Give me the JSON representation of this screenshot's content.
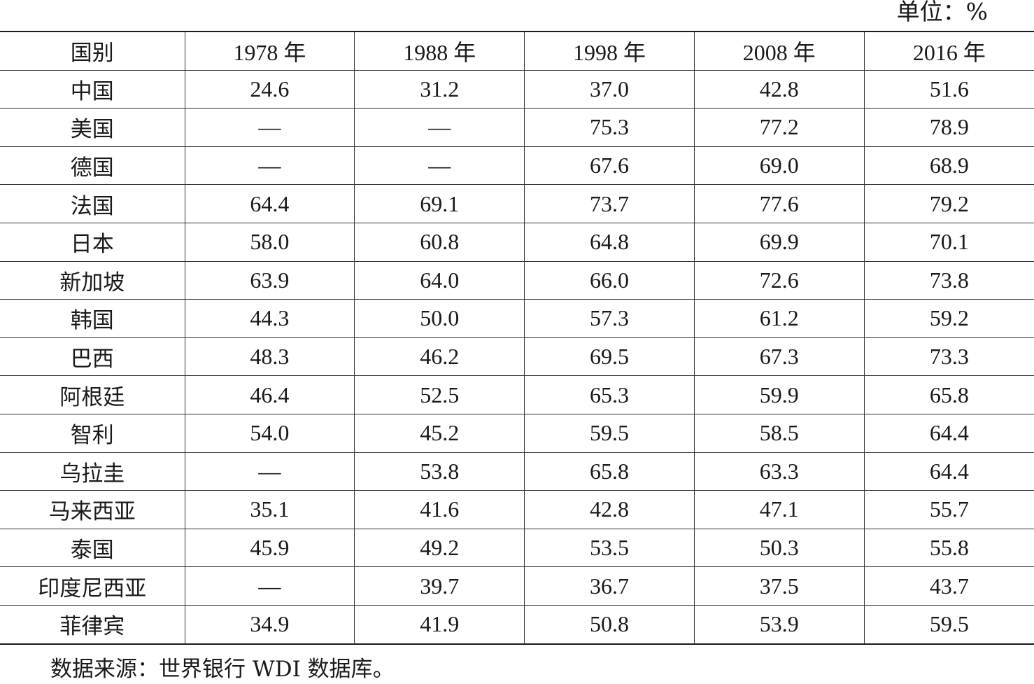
{
  "unit_label": "单位：%",
  "table": {
    "headers": [
      "国别",
      "1978 年",
      "1988 年",
      "1998 年",
      "2008 年",
      "2016 年"
    ],
    "rows": [
      [
        "中国",
        "24.6",
        "31.2",
        "37.0",
        "42.8",
        "51.6"
      ],
      [
        "美国",
        "—",
        "—",
        "75.3",
        "77.2",
        "78.9"
      ],
      [
        "德国",
        "—",
        "—",
        "67.6",
        "69.0",
        "68.9"
      ],
      [
        "法国",
        "64.4",
        "69.1",
        "73.7",
        "77.6",
        "79.2"
      ],
      [
        "日本",
        "58.0",
        "60.8",
        "64.8",
        "69.9",
        "70.1"
      ],
      [
        "新加坡",
        "63.9",
        "64.0",
        "66.0",
        "72.6",
        "73.8"
      ],
      [
        "韩国",
        "44.3",
        "50.0",
        "57.3",
        "61.2",
        "59.2"
      ],
      [
        "巴西",
        "48.3",
        "46.2",
        "69.5",
        "67.3",
        "73.3"
      ],
      [
        "阿根廷",
        "46.4",
        "52.5",
        "65.3",
        "59.9",
        "65.8"
      ],
      [
        "智利",
        "54.0",
        "45.2",
        "59.5",
        "58.5",
        "64.4"
      ],
      [
        "乌拉圭",
        "—",
        "53.8",
        "65.8",
        "63.3",
        "64.4"
      ],
      [
        "马来西亚",
        "35.1",
        "41.6",
        "42.8",
        "47.1",
        "55.7"
      ],
      [
        "泰国",
        "45.9",
        "49.2",
        "53.5",
        "50.3",
        "55.8"
      ],
      [
        "印度尼西亚",
        "—",
        "39.7",
        "36.7",
        "37.5",
        "43.7"
      ],
      [
        "菲律宾",
        "34.9",
        "41.9",
        "50.8",
        "53.9",
        "59.5"
      ]
    ]
  },
  "source_note": "数据来源：世界银行 WDI 数据库。"
}
